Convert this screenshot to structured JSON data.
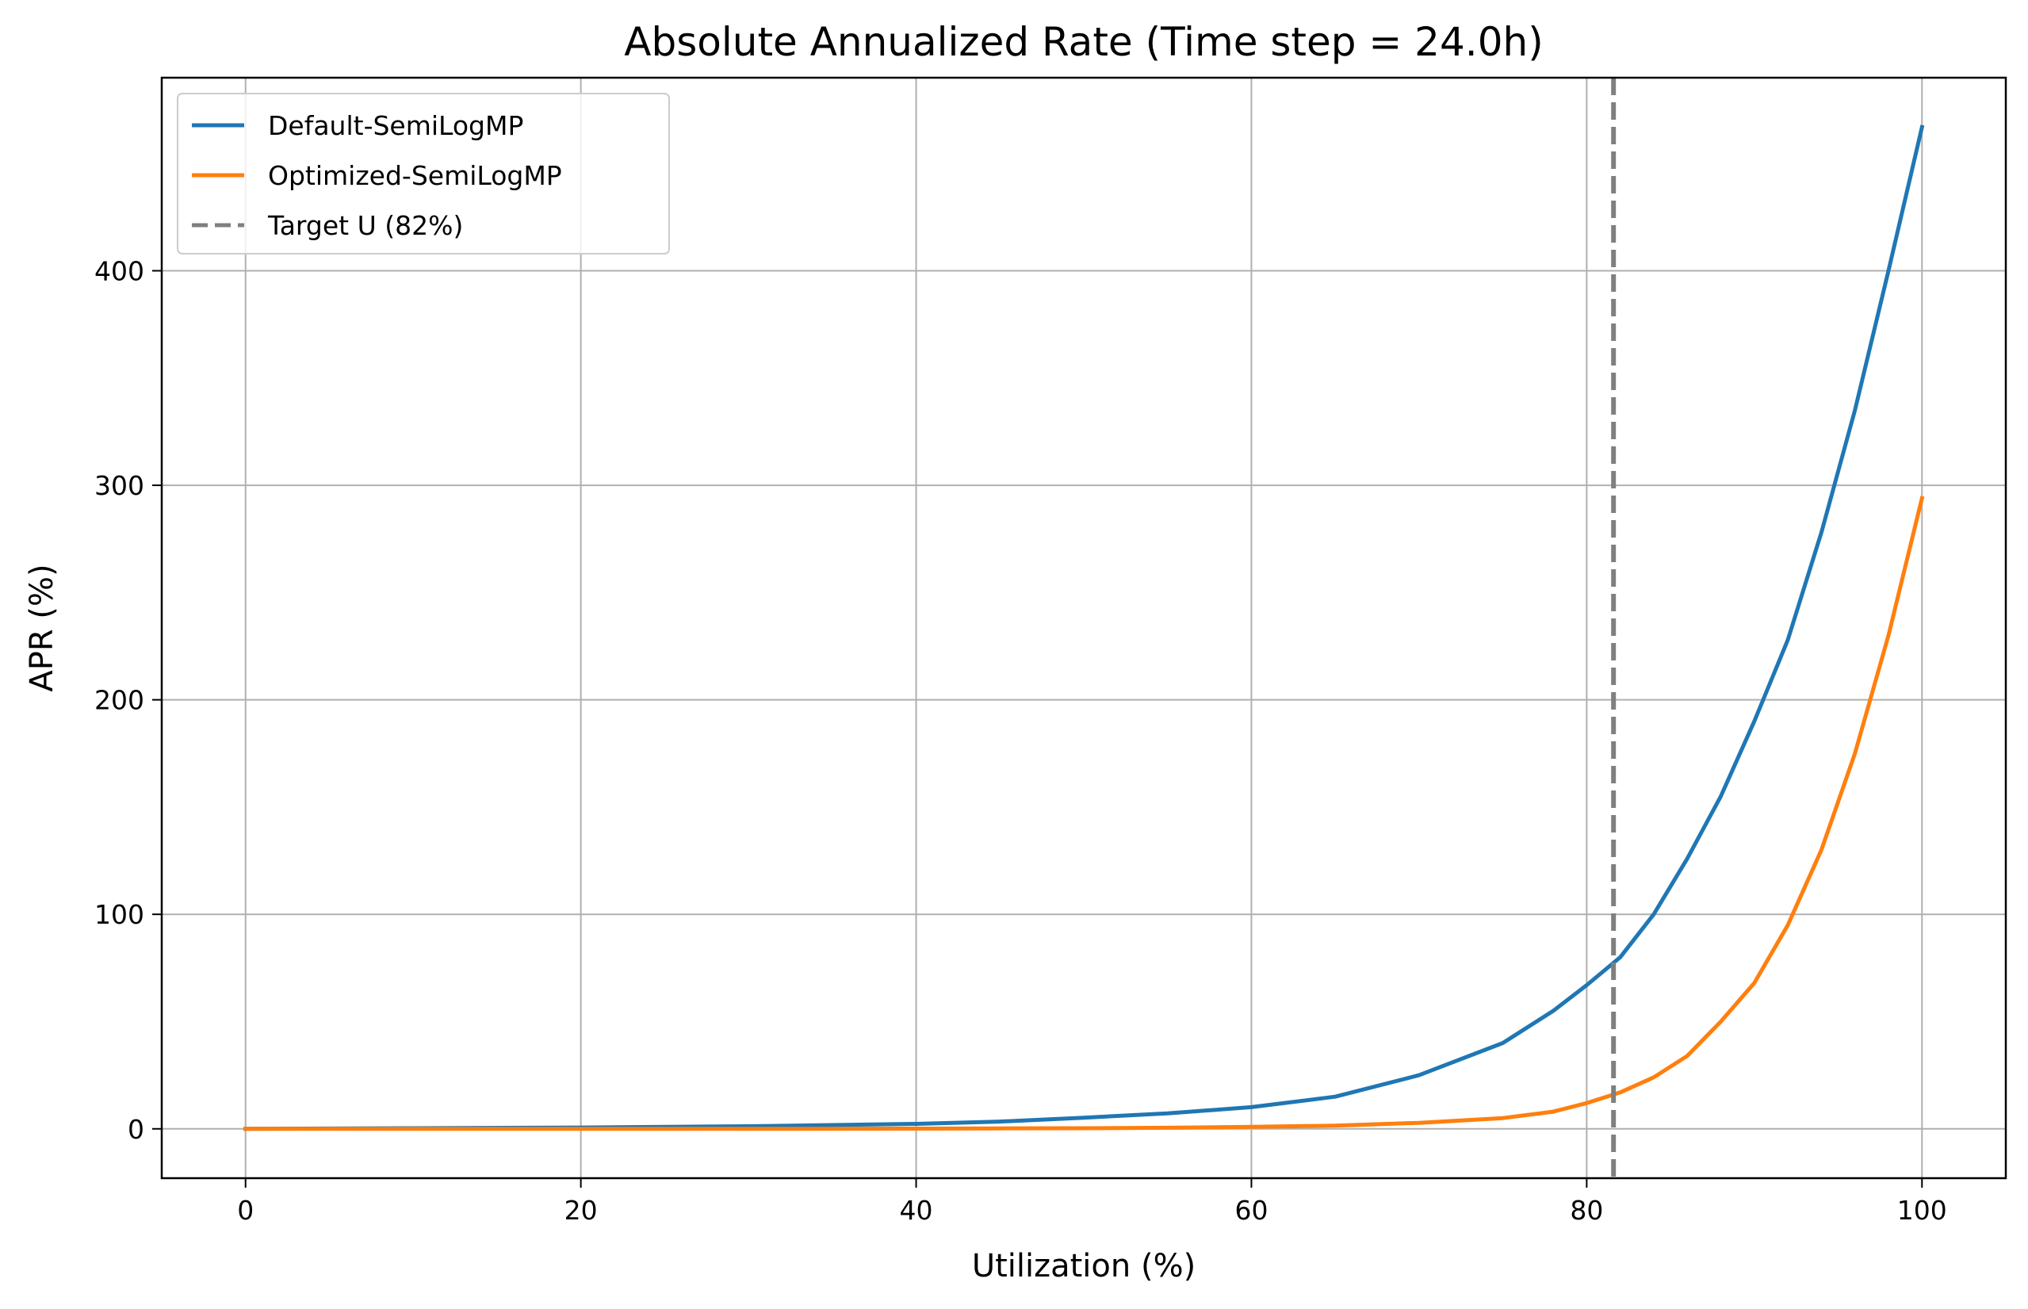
{
  "chart_data": {
    "type": "line",
    "title": "Absolute Annualized Rate (Time step = 24.0h)",
    "xlabel": "Utilization (%)",
    "ylabel": "APR (%)",
    "xlim": [
      -5,
      105
    ],
    "ylim": [
      -23,
      490
    ],
    "xticks": [
      0,
      20,
      40,
      60,
      80,
      100
    ],
    "yticks": [
      0,
      100,
      200,
      300,
      400
    ],
    "grid": true,
    "legend_position": "top-left",
    "x": [
      0,
      10,
      20,
      30,
      40,
      45,
      50,
      55,
      60,
      65,
      70,
      75,
      78,
      80,
      82,
      84,
      86,
      88,
      90,
      92,
      94,
      96,
      98,
      100
    ],
    "series": [
      {
        "name": "Default-SemiLogMP",
        "color": "#1f77b4",
        "style": "solid",
        "values": [
          0,
          0.3,
          0.6,
          1.2,
          2.3,
          3.4,
          5.2,
          7.2,
          10.1,
          15,
          25,
          40,
          55,
          67,
          80,
          100,
          126,
          155,
          190,
          228,
          278,
          335,
          400,
          467
        ]
      },
      {
        "name": "Optimized-SemiLogMP",
        "color": "#ff7f0e",
        "style": "solid",
        "values": [
          0,
          0,
          0,
          0,
          0.1,
          0.2,
          0.3,
          0.5,
          0.9,
          1.5,
          2.8,
          5,
          8,
          12,
          17,
          24,
          34,
          50,
          68,
          95,
          130,
          175,
          230,
          294
        ]
      }
    ],
    "reference_lines": [
      {
        "name": "Target U (82%)",
        "orientation": "vertical",
        "x": 81.6,
        "color": "#7f7f7f",
        "style": "dashed"
      }
    ]
  }
}
